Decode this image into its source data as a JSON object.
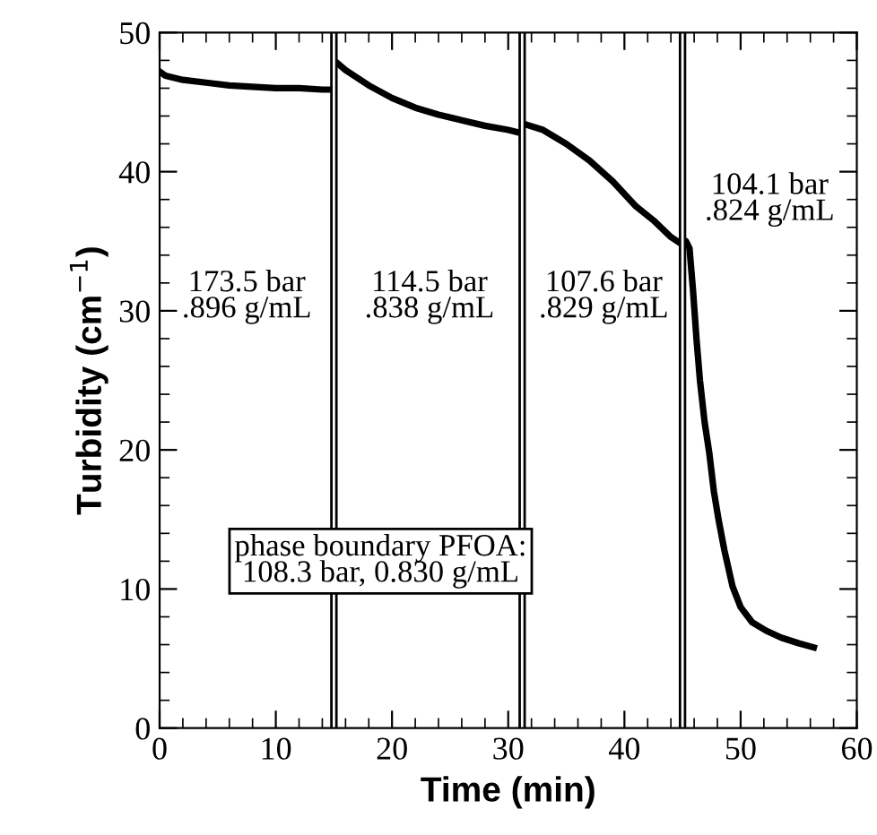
{
  "chart_data": {
    "type": "line",
    "xlabel": "Time (min)",
    "ylabel": "Turbidity (cm$^{−1}$)",
    "xlim": [
      0,
      60
    ],
    "xticks": [
      0,
      10,
      20,
      30,
      40,
      50,
      60
    ],
    "ylim": [
      0,
      50
    ],
    "yticks": [
      0,
      10,
      20,
      30,
      40,
      50
    ],
    "grid": false,
    "marker": "none",
    "line_style": "solid",
    "series": [
      {
        "color": "#000000",
        "x": [
          0,
          0.5,
          2,
          4,
          6,
          8,
          10,
          12,
          14,
          14.9,
          15.2,
          15.3,
          16,
          18,
          20,
          22,
          24,
          26,
          28,
          30,
          31,
          31.3,
          31.5,
          33,
          35,
          37,
          39,
          41,
          42.5,
          44,
          44.9,
          45.3,
          45.6,
          45.9,
          46.2,
          46.5,
          46.9,
          47.3,
          47.7,
          48.1,
          48.6,
          49.3,
          50,
          51,
          52.2,
          53.5,
          55,
          56.3
        ],
        "values": [
          47.2,
          46.9,
          46.6,
          46.4,
          46.2,
          46.1,
          46.0,
          46.0,
          45.9,
          45.9,
          null,
          47.8,
          47.3,
          46.2,
          45.3,
          44.6,
          44.1,
          43.7,
          43.3,
          43.0,
          42.8,
          null,
          43.4,
          43.0,
          42.0,
          40.8,
          39.3,
          37.5,
          36.5,
          35.3,
          34.8,
          35.0,
          34.5,
          31.5,
          28.0,
          25.0,
          22.0,
          19.8,
          17.0,
          15.0,
          12.8,
          10.2,
          8.7,
          7.6,
          7.0,
          6.5,
          6.1,
          5.8
        ]
      }
    ],
    "ref_lines": [
      {
        "axis": "x",
        "value": 15,
        "color": "#000000"
      },
      {
        "axis": "x",
        "value": 31.2,
        "color": "#000000"
      },
      {
        "axis": "x",
        "value": 45,
        "color": "#000000"
      }
    ],
    "annotations": [
      "173.5 bar\n.896 g/mL",
      "114.5 bar\n.838 g/mL",
      "107.6 bar\n.829 g/mL",
      "104.1 bar\n.824 g/mL",
      "phase boundary PFOA:\n108.3 bar, 0.830 g/mL"
    ]
  }
}
